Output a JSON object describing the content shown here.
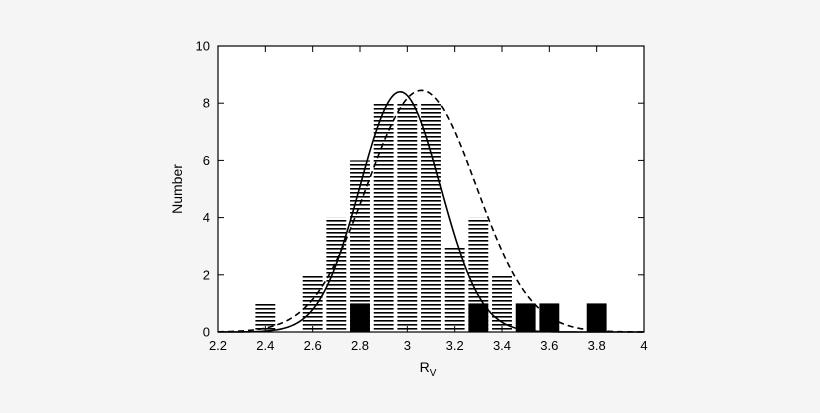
{
  "chart_data": {
    "type": "bar",
    "xlabel": "R",
    "xlabel_subscript": "V",
    "ylabel": "Number",
    "xlim": [
      2.2,
      4.0
    ],
    "ylim": [
      0,
      10
    ],
    "x_ticks": [
      "2.2",
      "2.4",
      "2.6",
      "2.8",
      "3",
      "3.2",
      "3.4",
      "3.6",
      "3.8",
      "4"
    ],
    "y_ticks": [
      "0",
      "2",
      "4",
      "6",
      "8",
      "10"
    ],
    "grid": false,
    "bin_width": 0.1,
    "series": [
      {
        "style": "hatched",
        "bins": [
          {
            "x": 2.4,
            "value": 1
          },
          {
            "x": 2.6,
            "value": 2
          },
          {
            "x": 2.7,
            "value": 4
          },
          {
            "x": 2.8,
            "value": 6
          },
          {
            "x": 2.9,
            "value": 8
          },
          {
            "x": 3.0,
            "value": 8
          },
          {
            "x": 3.1,
            "value": 8
          },
          {
            "x": 3.2,
            "value": 3
          },
          {
            "x": 3.3,
            "value": 4
          },
          {
            "x": 3.4,
            "value": 2
          }
        ]
      },
      {
        "style": "solid-black",
        "bins": [
          {
            "x": 2.8,
            "value": 1
          },
          {
            "x": 3.3,
            "value": 1
          },
          {
            "x": 3.5,
            "value": 1
          },
          {
            "x": 3.6,
            "value": 1
          },
          {
            "x": 3.8,
            "value": 1
          }
        ]
      }
    ],
    "curves": [
      {
        "style": "solid",
        "type": "gaussian",
        "mean": 2.97,
        "sigma": 0.17,
        "peak": 8.4
      },
      {
        "style": "dashed",
        "type": "gaussian",
        "mean": 3.06,
        "sigma": 0.23,
        "peak": 8.45
      }
    ],
    "colors": {
      "ink": "#000000",
      "background": "#f5f5f5",
      "plot_background": "#ffffff"
    }
  }
}
